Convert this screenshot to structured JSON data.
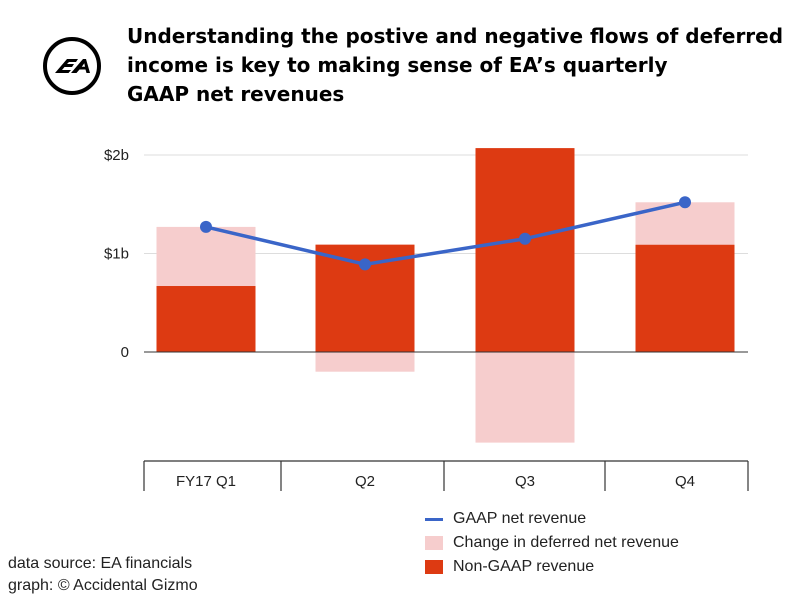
{
  "header": {
    "title_lines": [
      "Understanding the postive and negative flows of deferred",
      "income is key to making sense of EA’s quarterly",
      "GAAP net revenues"
    ],
    "logo_text": "EA"
  },
  "colors": {
    "non_gaap": "#dd3a12",
    "deferred": "#f6cdcd",
    "gaap_line": "#3a65c8",
    "grid": "#dddddd",
    "axis": "#333333"
  },
  "chart_data": {
    "type": "bar",
    "stacked": true,
    "categories": [
      "FY17 Q1",
      "Q2",
      "Q3",
      "Q4"
    ],
    "ylim": [
      -1.0,
      2.0
    ],
    "yticks": [
      {
        "value": 0,
        "label": "0"
      },
      {
        "value": 1,
        "label": "$1b"
      },
      {
        "value": 2,
        "label": "$2b"
      }
    ],
    "grid": true,
    "legend_position": "bottom-right",
    "series": [
      {
        "name": "GAAP net revenue",
        "kind": "line",
        "values": [
          1.27,
          0.89,
          1.15,
          1.52
        ]
      },
      {
        "name": "Change in deferred net revenue",
        "kind": "bar",
        "values": [
          0.6,
          -0.2,
          -0.92,
          0.43
        ]
      },
      {
        "name": "Non-GAAP revenue",
        "kind": "bar",
        "values": [
          0.67,
          1.09,
          2.07,
          1.09
        ]
      }
    ]
  },
  "footer": {
    "source_line": "data source: EA financials",
    "credit_line": "graph: © Accidental Gizmo"
  }
}
